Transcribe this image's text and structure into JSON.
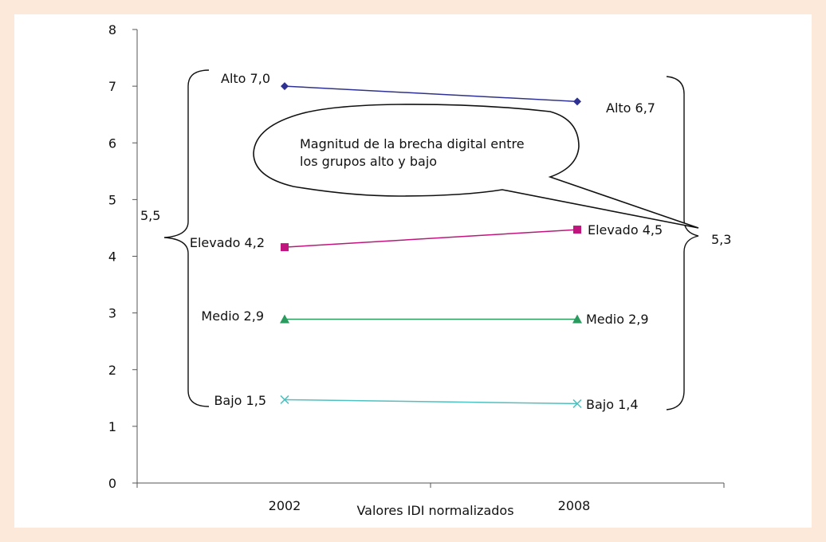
{
  "chart_data": {
    "type": "line",
    "xlabel": "Valores IDI normalizados",
    "categories": [
      "2002",
      "2008"
    ],
    "ylim": [
      0,
      8
    ],
    "yticks": [
      "0",
      "1",
      "2",
      "3",
      "4",
      "5",
      "6",
      "7",
      "8"
    ],
    "series": [
      {
        "name": "Alto",
        "values": [
          7.0,
          6.73
        ],
        "labels": [
          "Alto 7,0",
          "Alto 6,7"
        ],
        "color": "#2e3192",
        "marker": "diamond"
      },
      {
        "name": "Elevado",
        "values": [
          4.16,
          4.47
        ],
        "labels": [
          "Elevado 4,2",
          "Elevado 4,5"
        ],
        "color": "#c0157c",
        "marker": "square"
      },
      {
        "name": "Medio",
        "values": [
          2.89,
          2.89
        ],
        "labels": [
          "Medio 2,9",
          "Medio 2,9"
        ],
        "color": "#2a9a5e",
        "marker": "triangle"
      },
      {
        "name": "Bajo",
        "values": [
          1.47,
          1.4
        ],
        "labels": [
          "Bajo 1,5",
          "Bajo 1,4"
        ],
        "color": "#4fc0c0",
        "marker": "x"
      }
    ],
    "brackets": [
      {
        "label": "5,5",
        "side": "left"
      },
      {
        "label": "5,3",
        "side": "right"
      }
    ],
    "callout": {
      "lines": [
        "Magnitud de la brecha digital entre",
        "los grupos alto y bajo"
      ]
    }
  }
}
